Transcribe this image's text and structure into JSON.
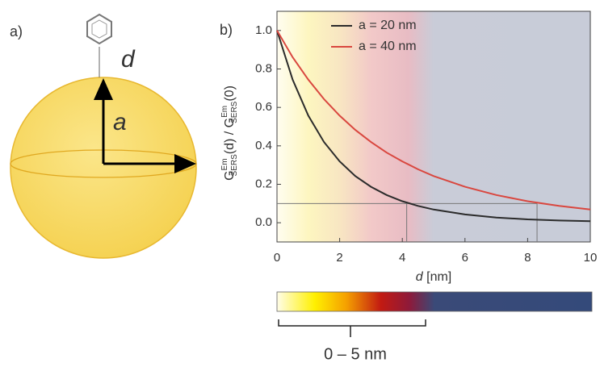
{
  "panel_a": {
    "label": "a)",
    "d_label": "d",
    "a_label": "a"
  },
  "chart_data": {
    "type": "line",
    "panel_label": "b)",
    "x": [
      0,
      0.5,
      1,
      1.5,
      2,
      2.5,
      3,
      3.5,
      4,
      4.5,
      5,
      6,
      7,
      8,
      9,
      10
    ],
    "series": [
      {
        "name": "a = 20 nm",
        "color": "#2b2b2b",
        "values": [
          1,
          0.744,
          0.557,
          0.42,
          0.319,
          0.243,
          0.187,
          0.144,
          0.112,
          0.0876,
          0.0687,
          0.0429,
          0.0273,
          0.0176,
          0.0116,
          0.0077
        ]
      },
      {
        "name": "a = 40 nm",
        "color": "#d9473f",
        "values": [
          1,
          0.861,
          0.744,
          0.643,
          0.557,
          0.483,
          0.42,
          0.365,
          0.319,
          0.278,
          0.243,
          0.187,
          0.144,
          0.112,
          0.0876,
          0.0687
        ]
      }
    ],
    "xlim": [
      0,
      10
    ],
    "ylim": [
      -0.1,
      1.1
    ],
    "xticks": [
      0,
      2,
      4,
      6,
      8,
      10
    ],
    "yticks": [
      {
        "value": 0,
        "label": "0.0"
      },
      0.2,
      0.4,
      0.6,
      0.8,
      {
        "value": 1,
        "label": "1.0"
      }
    ],
    "xlabel_parts": [
      "d",
      " [nm]"
    ],
    "ylabel_parts": [
      "G",
      "Em",
      "SERS",
      "(d) / G",
      "(0)"
    ],
    "reference_y": 0.1,
    "reference_x": [
      4.14,
      8.3
    ],
    "range_label": "0 – 5 nm"
  }
}
